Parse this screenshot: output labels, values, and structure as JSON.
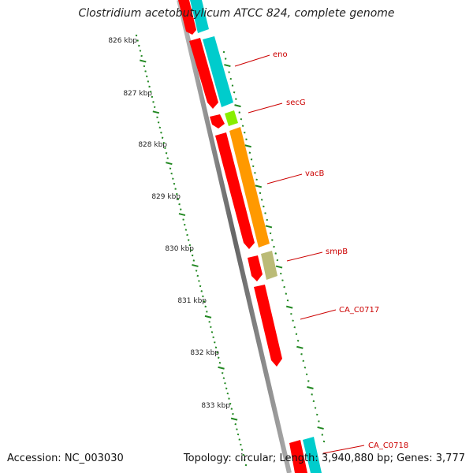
{
  "title": "Clostridium acetobutylicum ATCC 824, complete genome",
  "footer": {
    "accession": "Accession: NC_003030",
    "stats": "Topology: circular; Length: 3,940,880 bp; Genes: 3,777"
  },
  "scale_labels": [
    "826 kbp",
    "827 kbp",
    "828 kbp",
    "829 kbp",
    "830 kbp",
    "831 kbp",
    "832 kbp",
    "833 kbp"
  ],
  "genes": [
    {
      "name": "eno",
      "color": "#00cccc"
    },
    {
      "name": "secG",
      "color": "#88ee00"
    },
    {
      "name": "vacB",
      "color": "#ff9900"
    },
    {
      "name": "smpB",
      "color": "#bbbb77"
    },
    {
      "name": "CA_C0717",
      "color": "#ff0000"
    },
    {
      "name": "CA_C0718",
      "color": "#00cccc"
    }
  ],
  "colors": {
    "cds": "#ff0000",
    "backbone": "#888888",
    "ticks": "#228822",
    "label": "#cc0000"
  }
}
